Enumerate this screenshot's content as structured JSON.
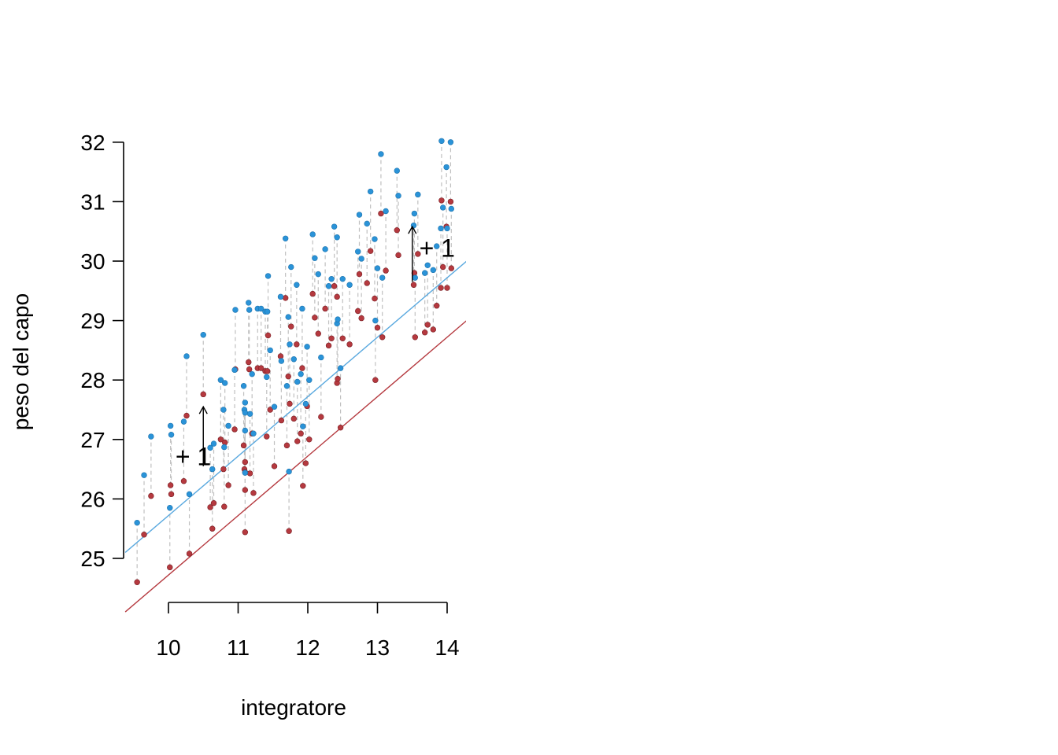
{
  "chart_data": {
    "type": "scatter",
    "title": "",
    "xlabel": "integratore",
    "ylabel": "peso del capo",
    "xlim": [
      9.38,
      14.28
    ],
    "ylim": [
      24.35,
      32.2
    ],
    "xticks": [
      "10",
      "11",
      "12",
      "13",
      "14"
    ],
    "yticks": [
      "25",
      "26",
      "27",
      "28",
      "29",
      "30",
      "31",
      "32"
    ],
    "grid": false,
    "legend": "none",
    "colors": {
      "treated": "#2a93d8",
      "control": "#b5393f",
      "segment": "#c0c0c0",
      "annotation": "#000000"
    },
    "lines": [
      {
        "color": "#5aa9df",
        "intercept": 15.72,
        "slope": 1.0
      },
      {
        "color": "#b5393f",
        "intercept": 14.72,
        "slope": 1.0
      }
    ],
    "annotations": [
      {
        "text": "+ 1",
        "x_text": 10.1,
        "y_text": 26.71,
        "x_arrow": 10.5,
        "y_from": 26.55,
        "y_to": 27.55
      },
      {
        "text": "+ 1",
        "x_text": 13.6,
        "y_text": 30.22,
        "x_arrow": 13.5,
        "y_from": 29.65,
        "y_to": 30.58
      }
    ],
    "points": [
      [
        9.55,
        24.6,
        25.6
      ],
      [
        9.65,
        25.4,
        26.4
      ],
      [
        9.75,
        26.05,
        27.05
      ],
      [
        10.02,
        24.85,
        25.85
      ],
      [
        10.03,
        26.23,
        27.23
      ],
      [
        10.04,
        26.08,
        27.08
      ],
      [
        10.22,
        26.3,
        27.3
      ],
      [
        10.26,
        27.4,
        28.4
      ],
      [
        10.3,
        25.08,
        26.08
      ],
      [
        10.5,
        27.76,
        28.76
      ],
      [
        10.6,
        25.86,
        26.86
      ],
      [
        10.63,
        25.5,
        26.5
      ],
      [
        10.65,
        25.93,
        26.93
      ],
      [
        10.75,
        27.0,
        28.0
      ],
      [
        10.79,
        26.5,
        27.5
      ],
      [
        10.8,
        25.87,
        26.87
      ],
      [
        10.81,
        26.95,
        27.95
      ],
      [
        10.86,
        26.23,
        27.23
      ],
      [
        10.95,
        27.17,
        28.17
      ],
      [
        10.96,
        28.18,
        29.18
      ],
      [
        11.08,
        26.9,
        27.9
      ],
      [
        11.09,
        26.5,
        27.5
      ],
      [
        11.1,
        26.62,
        27.62
      ],
      [
        11.1,
        26.45,
        27.45
      ],
      [
        11.1,
        26.15,
        27.15
      ],
      [
        11.1,
        25.44,
        26.44
      ],
      [
        11.15,
        28.3,
        29.3
      ],
      [
        11.16,
        28.18,
        29.18
      ],
      [
        11.17,
        26.43,
        27.43
      ],
      [
        11.2,
        27.1,
        28.1
      ],
      [
        11.22,
        26.1,
        27.1
      ],
      [
        11.28,
        28.2,
        29.2
      ],
      [
        11.33,
        28.2,
        29.2
      ],
      [
        11.39,
        28.15,
        29.15
      ],
      [
        11.41,
        27.05,
        28.05
      ],
      [
        11.42,
        28.15,
        29.15
      ],
      [
        11.43,
        28.75,
        29.75
      ],
      [
        11.46,
        27.5,
        28.5
      ],
      [
        11.52,
        26.55,
        27.55
      ],
      [
        11.61,
        28.4,
        29.4
      ],
      [
        11.62,
        27.32,
        28.32
      ],
      [
        11.68,
        29.38,
        30.38
      ],
      [
        11.7,
        26.9,
        27.9
      ],
      [
        11.72,
        28.06,
        29.06
      ],
      [
        11.73,
        25.46,
        26.46
      ],
      [
        11.74,
        27.6,
        28.6
      ],
      [
        11.76,
        28.9,
        29.9
      ],
      [
        11.8,
        27.35,
        28.35
      ],
      [
        11.84,
        28.6,
        29.6
      ],
      [
        11.85,
        26.97,
        27.97
      ],
      [
        11.9,
        27.1,
        28.1
      ],
      [
        11.92,
        28.2,
        29.2
      ],
      [
        11.93,
        26.22,
        27.22
      ],
      [
        11.97,
        26.6,
        27.6
      ],
      [
        11.99,
        27.56,
        28.56
      ],
      [
        12.02,
        27.0,
        28.0
      ],
      [
        12.07,
        29.45,
        30.45
      ],
      [
        12.1,
        29.05,
        30.05
      ],
      [
        12.15,
        28.78,
        29.78
      ],
      [
        12.19,
        27.38,
        28.38
      ],
      [
        12.25,
        29.2,
        30.2
      ],
      [
        12.3,
        28.58,
        29.58
      ],
      [
        12.34,
        28.7,
        29.7
      ],
      [
        12.38,
        29.58,
        30.58
      ],
      [
        12.42,
        29.4,
        30.4
      ],
      [
        12.42,
        27.95,
        28.95
      ],
      [
        12.43,
        28.02,
        29.02
      ],
      [
        12.47,
        27.2,
        28.2
      ],
      [
        12.5,
        28.7,
        29.7
      ],
      [
        12.6,
        28.6,
        29.6
      ],
      [
        12.72,
        29.16,
        30.16
      ],
      [
        12.74,
        29.78,
        30.78
      ],
      [
        12.77,
        29.04,
        30.04
      ],
      [
        12.85,
        29.63,
        30.63
      ],
      [
        12.9,
        30.17,
        31.17
      ],
      [
        12.96,
        29.37,
        30.37
      ],
      [
        12.97,
        28.0,
        29.0
      ],
      [
        13.0,
        28.88,
        29.88
      ],
      [
        13.05,
        30.8,
        31.8
      ],
      [
        13.07,
        28.72,
        29.72
      ],
      [
        13.12,
        29.84,
        30.84
      ],
      [
        13.28,
        30.52,
        31.52
      ],
      [
        13.3,
        30.1,
        31.1
      ],
      [
        13.52,
        29.6,
        30.6
      ],
      [
        13.53,
        29.8,
        30.8
      ],
      [
        13.54,
        28.72,
        29.72
      ],
      [
        13.58,
        30.12,
        31.12
      ],
      [
        13.68,
        28.8,
        29.8
      ],
      [
        13.72,
        28.93,
        29.93
      ],
      [
        13.8,
        28.85,
        29.85
      ],
      [
        13.85,
        29.25,
        30.25
      ],
      [
        13.91,
        29.55,
        30.55
      ],
      [
        13.92,
        31.02,
        32.02
      ],
      [
        13.94,
        29.9,
        30.9
      ],
      [
        13.99,
        30.58,
        31.58
      ],
      [
        14.0,
        29.55,
        30.55
      ],
      [
        14.05,
        31.0,
        32.0
      ],
      [
        14.06,
        29.88,
        30.88
      ]
    ]
  }
}
